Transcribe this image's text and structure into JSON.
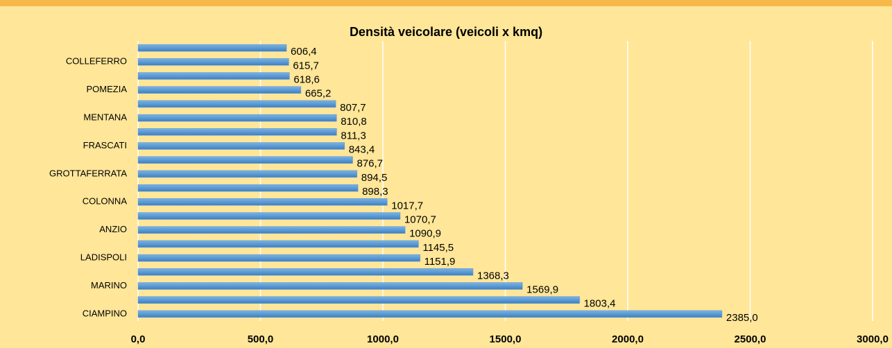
{
  "chart_data": {
    "type": "barh",
    "title": "Densità veicolare (veicoli x kmq)",
    "categories": [
      null,
      "COLLEFERRO",
      null,
      "POMEZIA",
      null,
      "MENTANA",
      null,
      "FRASCATI",
      null,
      "GROTTAFERRATA",
      null,
      "COLONNA",
      null,
      "ANZIO",
      null,
      "LADISPOLI",
      null,
      "MARINO",
      null,
      "CIAMPINO"
    ],
    "values": [
      606.4,
      615.7,
      618.6,
      665.2,
      807.7,
      810.8,
      811.3,
      843.4,
      876.7,
      894.5,
      898.3,
      1017.7,
      1070.7,
      1090.9,
      1145.5,
      1151.9,
      1368.3,
      1569.9,
      1803.4,
      2385.0
    ],
    "value_labels": [
      "606,4",
      "615,7",
      "618,6",
      "665,2",
      "807,7",
      "810,8",
      "811,3",
      "843,4",
      "876,7",
      "894,5",
      "898,3",
      "1017,7",
      "1070,7",
      "1090,9",
      "1145,5",
      "1151,9",
      "1368,3",
      "1569,9",
      "1803,4",
      "2385,0"
    ],
    "color": "#5b9bd5",
    "xlim": [
      0,
      3000
    ],
    "xticks": [
      {
        "value": 0,
        "label": "0,0"
      },
      {
        "value": 500,
        "label": "500,0"
      },
      {
        "value": 1000,
        "label": "1000,0"
      },
      {
        "value": 1500,
        "label": "1500,0"
      },
      {
        "value": 2000,
        "label": "2000,0"
      },
      {
        "value": 2500,
        "label": "2500,0"
      },
      {
        "value": 3000,
        "label": "3000,0"
      }
    ],
    "grid": true
  }
}
